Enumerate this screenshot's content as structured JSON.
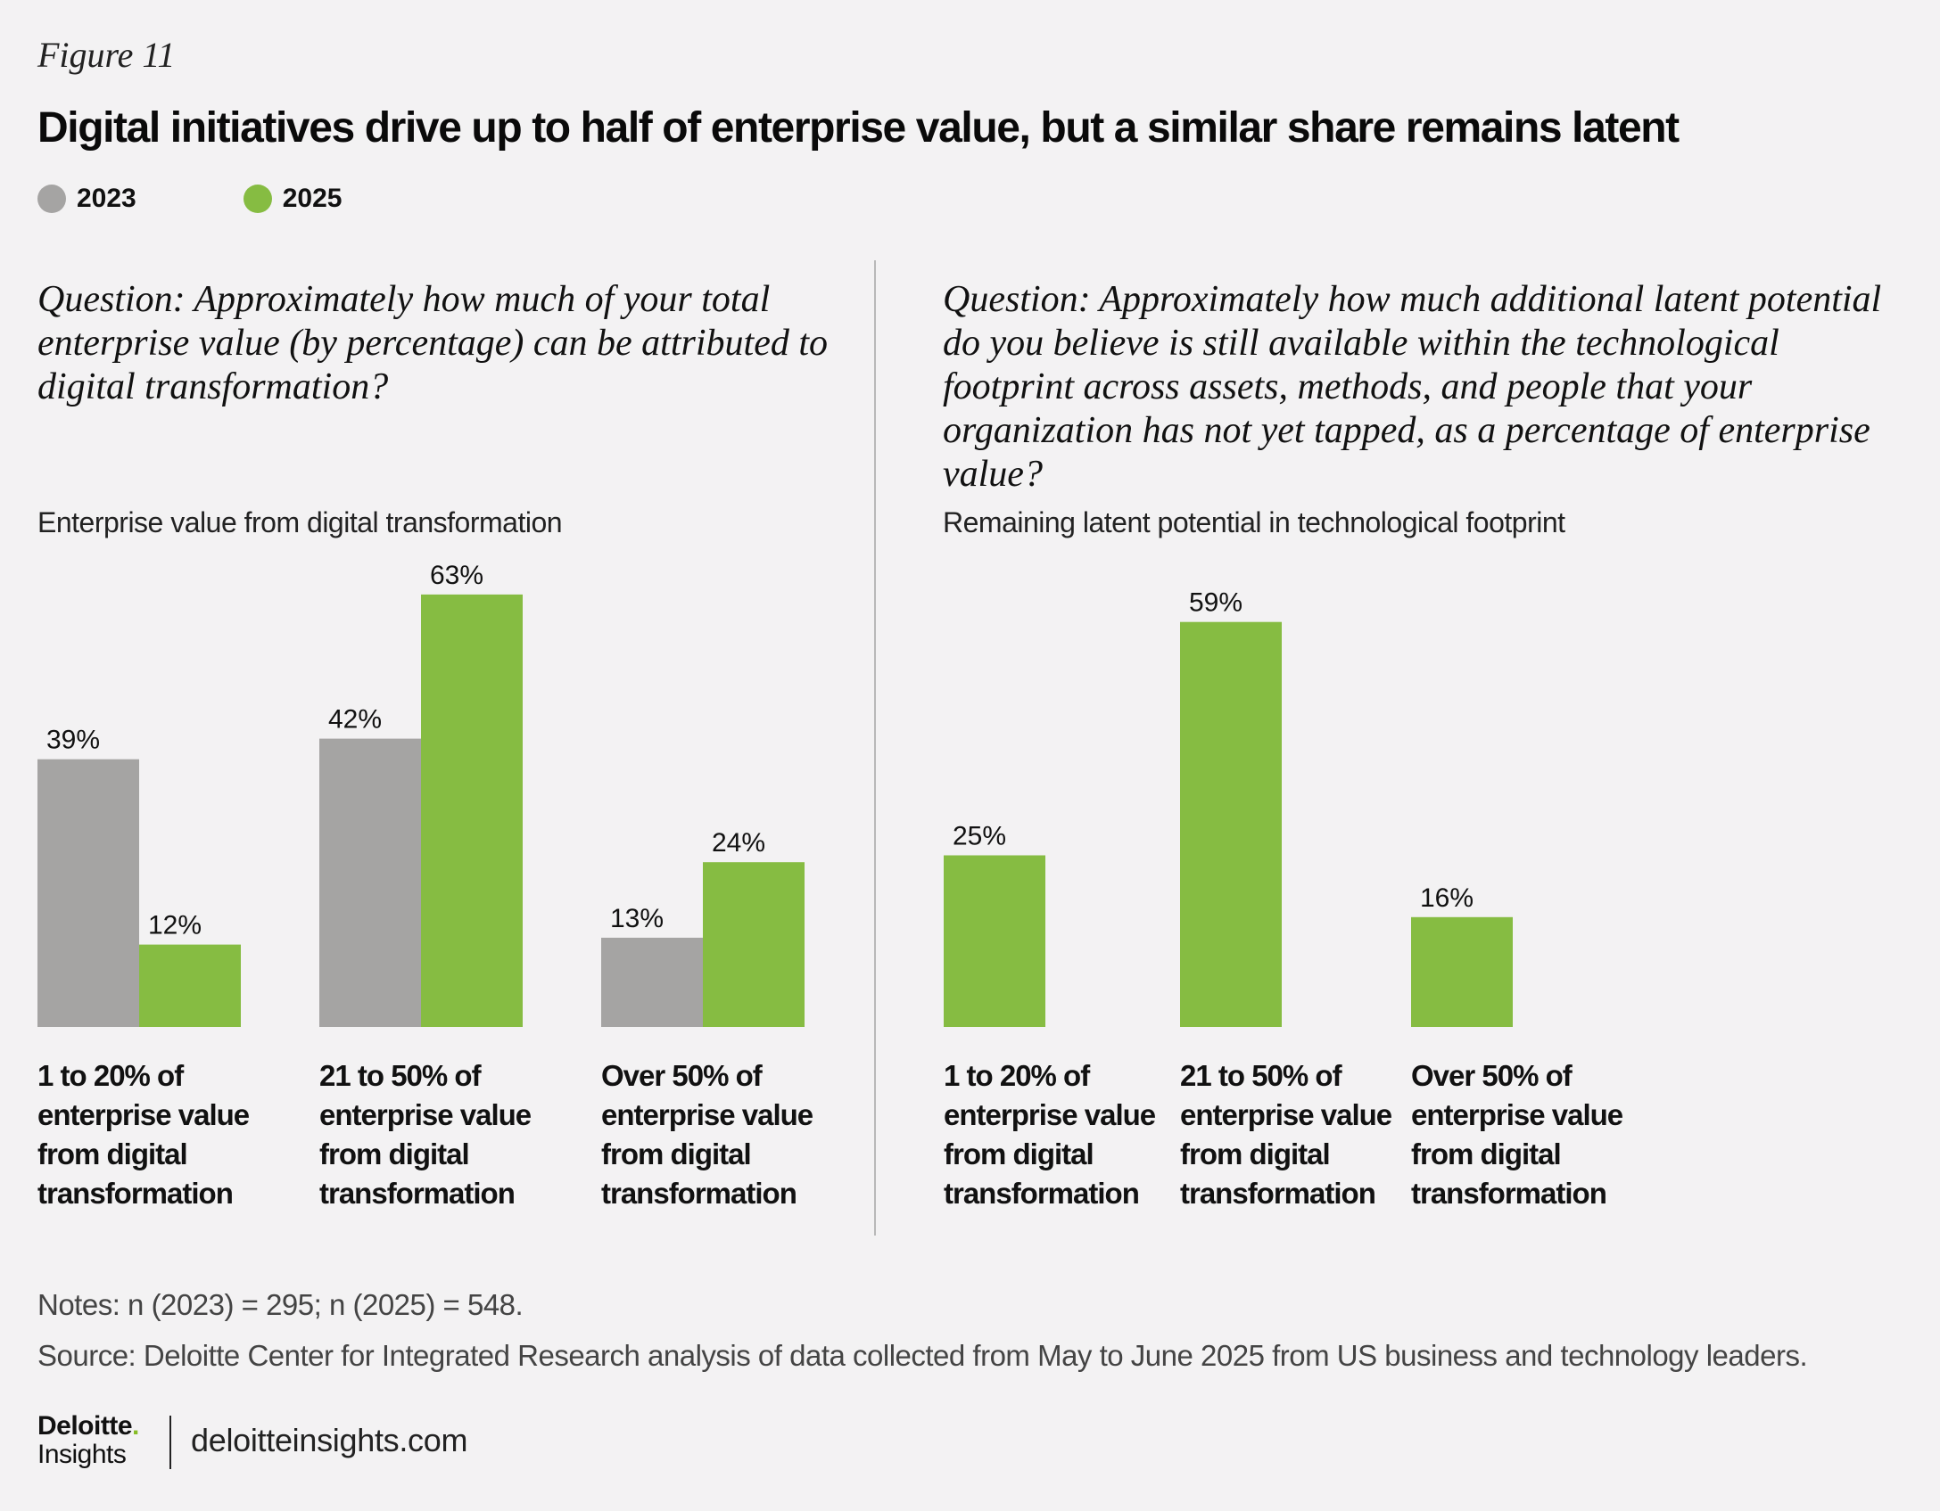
{
  "figure_label": "Figure 11",
  "title": "Digital initiatives drive up to half of enterprise value, but a similar share remains latent",
  "legend": [
    {
      "label": "2023",
      "color": "#a5a4a3"
    },
    {
      "label": "2025",
      "color": "#86bc42"
    }
  ],
  "chart_data": [
    {
      "type": "bar",
      "question": "Question: Approximately how much of your total enterprise value (by percentage) can be attributed to digital transformation?",
      "title": "Enterprise value from digital transformation",
      "categories": [
        "1 to 20% of enterprise value from digital transformation",
        "21 to 50% of enterprise value from digital transformation",
        "Over 50% of enterprise value from digital transformation"
      ],
      "series": [
        {
          "name": "2023",
          "values": [
            39,
            42,
            13
          ],
          "labels": [
            "39%",
            "42%",
            "13%"
          ]
        },
        {
          "name": "2025",
          "values": [
            12,
            63,
            24
          ],
          "labels": [
            "12%",
            "63%",
            "24%"
          ]
        }
      ],
      "ylim": [
        0,
        70
      ],
      "grid": false
    },
    {
      "type": "bar",
      "question": "Question: Approximately how much additional latent potential do you believe is still available within the technological footprint across assets, methods, and people that your organization has not yet tapped, as a percentage of enterprise value?",
      "title": "Remaining latent potential in technological footprint",
      "categories": [
        "1 to 20% of enterprise value from digital transformation",
        "21 to 50% of enterprise value from digital transformation",
        "Over 50% of enterprise value from digital transformation"
      ],
      "series": [
        {
          "name": "2025",
          "values": [
            25,
            59,
            16
          ],
          "labels": [
            "25%",
            "59%",
            "16%"
          ]
        }
      ],
      "ylim": [
        0,
        70
      ],
      "grid": false
    }
  ],
  "notes": "Notes: n (2023) = 295; n (2025) = 548.",
  "source": "Source: Deloitte Center for Integrated Research analysis of data collected from May to June 2025 from US business and technology leaders.",
  "logo": {
    "line1": "Deloitte",
    "dot": ".",
    "line2": "Insights"
  },
  "website": "deloitteinsights.com"
}
